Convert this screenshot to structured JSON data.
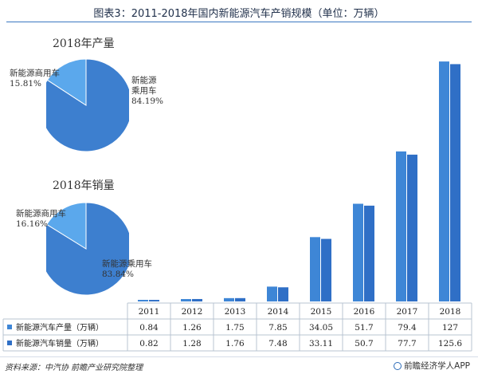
{
  "title": "图表3：2011-2018年国内新能源汽车产销规模（单位：万辆）",
  "source": "资料来源：中汽协 前瞻产业研究院整理",
  "brand": "前瞻经济学人APP",
  "colors": {
    "production": "#3e86d6",
    "sales": "#2f6fc6",
    "pie_main": "#3d7fcf",
    "pie_small": "#5ba8ec"
  },
  "pies": [
    {
      "title": "2018年产量",
      "slices": [
        {
          "label_lines": [
            "新能源",
            "乘用车",
            "84.19%"
          ],
          "value": 84.19
        },
        {
          "label_lines": [
            "新能源商用车",
            "15.81%"
          ],
          "value": 15.81
        }
      ]
    },
    {
      "title": "2018年销量",
      "slices": [
        {
          "label_lines": [
            "新能源乘用车",
            "83.84%"
          ],
          "value": 83.84
        },
        {
          "label_lines": [
            "新能源商用车",
            "16.16%"
          ],
          "value": 16.16
        }
      ]
    }
  ],
  "chart_data": {
    "type": "bar",
    "categories": [
      "2011",
      "2012",
      "2013",
      "2014",
      "2015",
      "2016",
      "2017",
      "2018"
    ],
    "series": [
      {
        "name": "新能源汽车产量（万辆）",
        "values": [
          0.84,
          1.26,
          1.75,
          7.85,
          34.05,
          51.7,
          79.4,
          127
        ]
      },
      {
        "name": "新能源汽车销量（万辆）",
        "values": [
          0.82,
          1.28,
          1.76,
          7.48,
          33.11,
          50.7,
          77.7,
          125.6
        ]
      }
    ],
    "table_values": [
      [
        "0.84",
        "1.26",
        "1.75",
        "7.85",
        "34.05",
        "51.7",
        "79.4",
        "127"
      ],
      [
        "0.82",
        "1.28",
        "1.76",
        "7.48",
        "33.11",
        "50.7",
        "77.7",
        "125.6"
      ]
    ],
    "ylim": [
      0,
      130
    ],
    "grid": false,
    "legend": "table-bottom"
  }
}
